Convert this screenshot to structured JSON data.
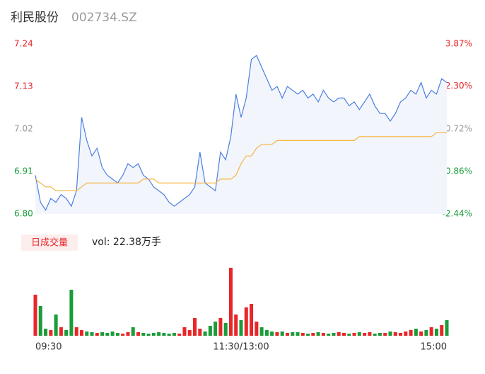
{
  "header": {
    "name": "利民股份",
    "code": "002734.SZ"
  },
  "chart_data": [
    {
      "type": "line",
      "x": [
        0,
        3,
        6,
        9,
        12,
        15,
        18,
        21,
        24,
        27,
        30,
        33,
        36,
        39,
        42,
        45,
        48,
        51,
        54,
        57,
        60,
        63,
        66,
        69,
        72,
        75,
        78,
        81,
        84,
        87,
        90,
        93,
        96,
        99,
        102,
        105,
        108,
        111,
        114,
        117,
        120,
        123,
        126,
        129,
        132,
        135,
        138,
        141,
        144,
        147,
        150,
        153,
        156,
        159,
        162,
        165,
        168,
        171,
        174,
        177,
        180,
        183,
        186,
        189,
        192,
        195,
        198,
        201,
        204,
        207,
        210,
        213,
        216,
        219,
        222,
        225,
        228,
        231,
        234,
        237,
        240
      ],
      "xlim": [
        0,
        240
      ],
      "xticks": [
        {
          "value": 0,
          "label": "09:30"
        },
        {
          "value": 120,
          "label": "11:30/13:00"
        },
        {
          "value": 240,
          "label": "15:00"
        }
      ],
      "ylim": [
        6.8,
        7.24
      ],
      "yticks": [
        6.8,
        6.91,
        7.02,
        7.13,
        7.24
      ],
      "ytick_labels": [
        "6.80",
        "6.91",
        "7.02",
        "7.13",
        "7.24"
      ],
      "y2lim": [
        -2.44,
        3.87
      ],
      "y2ticks": [
        {
          "value": -2.44,
          "label": "-2.44%"
        },
        {
          "value": -0.86,
          "label": "-0.86%"
        },
        {
          "value": 0.72,
          "label": "0.72%"
        },
        {
          "value": 2.3,
          "label": "2.30%"
        },
        {
          "value": 3.87,
          "label": "3.87%"
        }
      ],
      "tick_colors": [
        "#1a9c3a",
        "#1a9c3a",
        "#999999",
        "#e8262a",
        "#e8262a"
      ],
      "area_color": "#f2f5fc",
      "series": [
        {
          "color": "#4a7fe0",
          "values": [
            6.9,
            6.83,
            6.81,
            6.84,
            6.83,
            6.85,
            6.84,
            6.82,
            6.86,
            7.05,
            6.99,
            6.95,
            6.97,
            6.92,
            6.9,
            6.89,
            6.88,
            6.9,
            6.93,
            6.92,
            6.93,
            6.9,
            6.89,
            6.87,
            6.86,
            6.85,
            6.83,
            6.82,
            6.83,
            6.84,
            6.85,
            6.87,
            6.96,
            6.88,
            6.87,
            6.86,
            6.96,
            6.94,
            7.0,
            7.11,
            7.05,
            7.1,
            7.2,
            7.21,
            7.18,
            7.15,
            7.12,
            7.13,
            7.1,
            7.13,
            7.12,
            7.11,
            7.12,
            7.1,
            7.11,
            7.09,
            7.12,
            7.1,
            7.09,
            7.1,
            7.1,
            7.08,
            7.09,
            7.07,
            7.09,
            7.11,
            7.08,
            7.06,
            7.06,
            7.04,
            7.06,
            7.09,
            7.1,
            7.12,
            7.11,
            7.14,
            7.1,
            7.12,
            7.11,
            7.15,
            7.14
          ]
        },
        {
          "color": "#f5b642",
          "values": [
            6.89,
            6.88,
            6.87,
            6.87,
            6.86,
            6.86,
            6.86,
            6.86,
            6.86,
            6.87,
            6.88,
            6.88,
            6.88,
            6.88,
            6.88,
            6.88,
            6.88,
            6.88,
            6.88,
            6.88,
            6.88,
            6.89,
            6.89,
            6.89,
            6.88,
            6.88,
            6.88,
            6.88,
            6.88,
            6.88,
            6.88,
            6.88,
            6.88,
            6.88,
            6.88,
            6.88,
            6.89,
            6.89,
            6.89,
            6.9,
            6.93,
            6.95,
            6.95,
            6.97,
            6.98,
            6.98,
            6.98,
            6.99,
            6.99,
            6.99,
            6.99,
            6.99,
            6.99,
            6.99,
            6.99,
            6.99,
            6.99,
            6.99,
            6.99,
            6.99,
            6.99,
            6.99,
            6.99,
            7.0,
            7.0,
            7.0,
            7.0,
            7.0,
            7.0,
            7.0,
            7.0,
            7.0,
            7.0,
            7.0,
            7.0,
            7.0,
            7.0,
            7.0,
            7.01,
            7.01,
            7.01
          ]
        }
      ]
    },
    {
      "type": "bar",
      "label": "日成交量",
      "summary": "vol: 22.38万手",
      "up_color": "#e8262a",
      "down_color": "#1a9c3a",
      "values": [
        58,
        42,
        10,
        8,
        30,
        12,
        8,
        65,
        12,
        8,
        6,
        5,
        4,
        5,
        4,
        6,
        4,
        3,
        5,
        12,
        5,
        4,
        3,
        4,
        5,
        4,
        3,
        4,
        3,
        12,
        8,
        25,
        10,
        6,
        14,
        20,
        25,
        18,
        96,
        30,
        22,
        40,
        45,
        20,
        12,
        8,
        6,
        5,
        6,
        4,
        5,
        5,
        4,
        3,
        4,
        5,
        4,
        3,
        4,
        5,
        4,
        3,
        4,
        5,
        4,
        5,
        3,
        4,
        4,
        6,
        5,
        4,
        6,
        8,
        10,
        6,
        8,
        12,
        10,
        15,
        22
      ]
    }
  ]
}
